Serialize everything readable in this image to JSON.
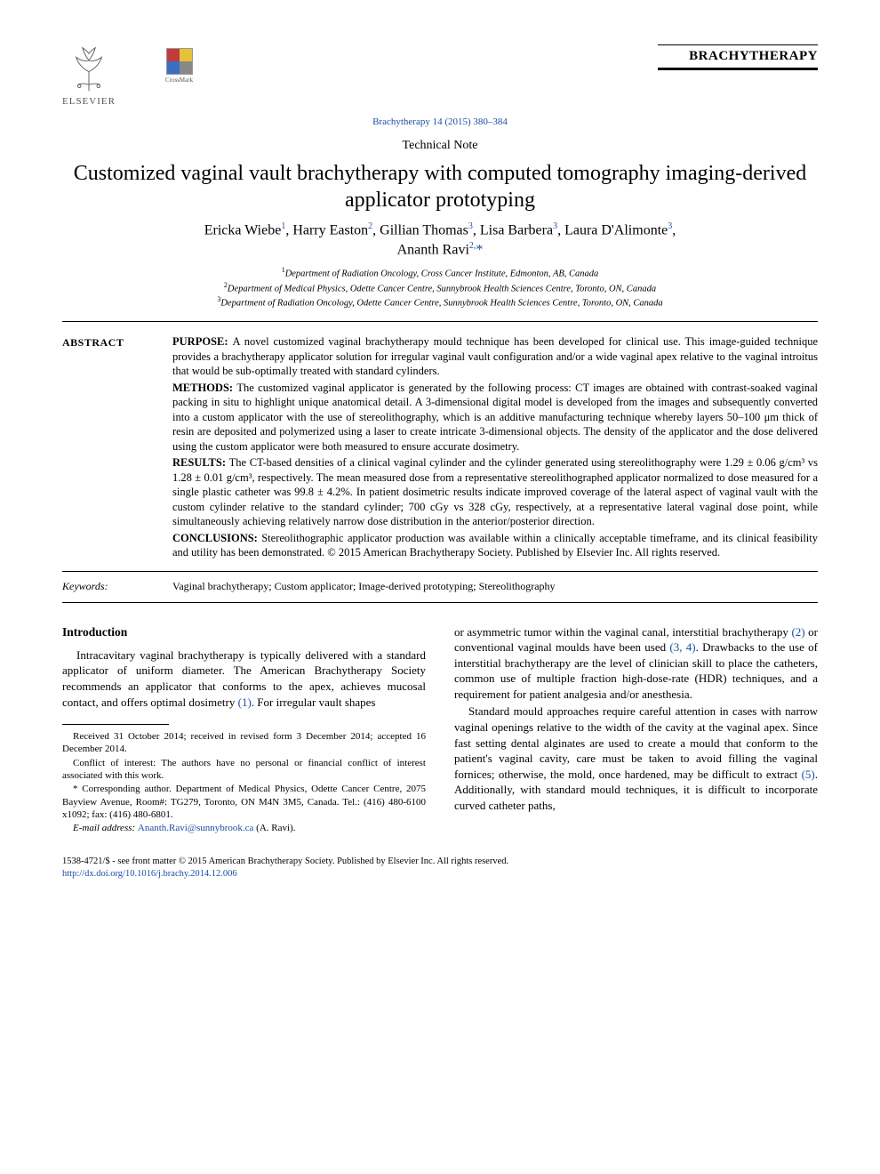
{
  "header": {
    "publisher": "ELSEVIER",
    "crossmark_label": "CrossMark",
    "journal_brand": "BRACHYTHERAPY",
    "journal_ref": "Brachytherapy 14 (2015) 380–384"
  },
  "article_type": "Technical Note",
  "title": "Customized vaginal vault brachytherapy with computed tomography imaging-derived applicator prototyping",
  "authors_html": "Ericka Wiebe<sup>1</sup>, Harry Easton<sup>2</sup>, Gillian Thomas<sup>3</sup>, Lisa Barbera<sup>3</sup>, Laura D'Alimonte<sup>3</sup>,<br>Ananth Ravi<sup>2,</sup><span class='star'>*</span>",
  "affiliations": [
    "Department of Radiation Oncology, Cross Cancer Institute, Edmonton, AB, Canada",
    "Department of Medical Physics, Odette Cancer Centre, Sunnybrook Health Sciences Centre, Toronto, ON, Canada",
    "Department of Radiation Oncology, Odette Cancer Centre, Sunnybrook Health Sciences Centre, Toronto, ON, Canada"
  ],
  "abstract": {
    "label": "ABSTRACT",
    "purpose": "A novel customized vaginal brachytherapy mould technique has been developed for clinical use. This image-guided technique provides a brachytherapy applicator solution for irregular vaginal vault configuration and/or a wide vaginal apex relative to the vaginal introitus that would be sub-optimally treated with standard cylinders.",
    "methods": "The customized vaginal applicator is generated by the following process: CT images are obtained with contrast-soaked vaginal packing in situ to highlight unique anatomical detail. A 3-dimensional digital model is developed from the images and subsequently converted into a custom applicator with the use of stereolithography, which is an additive manufacturing technique whereby layers 50–100 μm thick of resin are deposited and polymerized using a laser to create intricate 3-dimensional objects. The density of the applicator and the dose delivered using the custom applicator were both measured to ensure accurate dosimetry.",
    "results": "The CT-based densities of a clinical vaginal cylinder and the cylinder generated using stereolithography were 1.29 ± 0.06 g/cm³ vs 1.28 ± 0.01 g/cm³, respectively. The mean measured dose from a representative stereolithographed applicator normalized to dose measured for a single plastic catheter was 99.8 ± 4.2%. In patient dosimetric results indicate improved coverage of the lateral aspect of vaginal vault with the custom cylinder relative to the standard cylinder; 700 cGy vs 328 cGy, respectively, at a representative lateral vaginal dose point, while simultaneously achieving relatively narrow dose distribution in the anterior/posterior direction.",
    "conclusions": "Stereolithographic applicator production was available within a clinically acceptable timeframe, and its clinical feasibility and utility has been demonstrated. © 2015 American Brachytherapy Society. Published by Elsevier Inc. All rights reserved."
  },
  "keywords": {
    "label": "Keywords:",
    "text": "Vaginal brachytherapy; Custom applicator; Image-derived prototyping; Stereolithography"
  },
  "introduction": {
    "heading": "Introduction",
    "para1": "Intracavitary vaginal brachytherapy is typically delivered with a standard applicator of uniform diameter. The American Brachytherapy Society recommends an applicator that conforms to the apex, achieves mucosal contact, and offers optimal dosimetry ",
    "cite1": "(1)",
    "para1_tail": ". For irregular vault shapes",
    "para2_lead": "or asymmetric tumor within the vaginal canal, interstitial brachytherapy ",
    "cite2": "(2)",
    "para2_mid": " or conventional vaginal moulds have been used ",
    "cite3": "(3, 4)",
    "para2_tail": ". Drawbacks to the use of interstitial brachytherapy are the level of clinician skill to place the catheters, common use of multiple fraction high-dose-rate (HDR) techniques, and a requirement for patient analgesia and/or anesthesia.",
    "para3_lead": "Standard mould approaches require careful attention in cases with narrow vaginal openings relative to the width of the cavity at the vaginal apex. Since fast setting dental alginates are used to create a mould that conform to the patient's vaginal cavity, care must be taken to avoid filling the vaginal fornices; otherwise, the mold, once hardened, may be difficult to extract ",
    "cite5": "(5)",
    "para3_tail": ". Additionally, with standard mould techniques, it is difficult to incorporate curved catheter paths,"
  },
  "footnotes": {
    "received": "Received 31 October 2014; received in revised form 3 December 2014; accepted 16 December 2014.",
    "conflict": "Conflict of interest: The authors have no personal or financial conflict of interest associated with this work.",
    "corresponding": "* Corresponding author. Department of Medical Physics, Odette Cancer Centre, 2075 Bayview Avenue, Room#: TG279, Toronto, ON M4N 3M5, Canada. Tel.: (416) 480-6100 x1092; fax: (416) 480-6801.",
    "email_label": "E-mail address: ",
    "email": "Ananth.Ravi@sunnybrook.ca",
    "email_tail": " (A. Ravi)."
  },
  "bottom": {
    "copyright": "1538-4721/$ - see front matter © 2015 American Brachytherapy Society. Published by Elsevier Inc. All rights reserved.",
    "doi": "http://dx.doi.org/10.1016/j.brachy.2014.12.006"
  },
  "colors": {
    "link": "#1a4fa3",
    "text": "#000000",
    "background": "#ffffff"
  },
  "typography": {
    "body_family": "Times New Roman",
    "title_size_pt": 18,
    "body_size_pt": 10,
    "abstract_size_pt": 9.5
  }
}
